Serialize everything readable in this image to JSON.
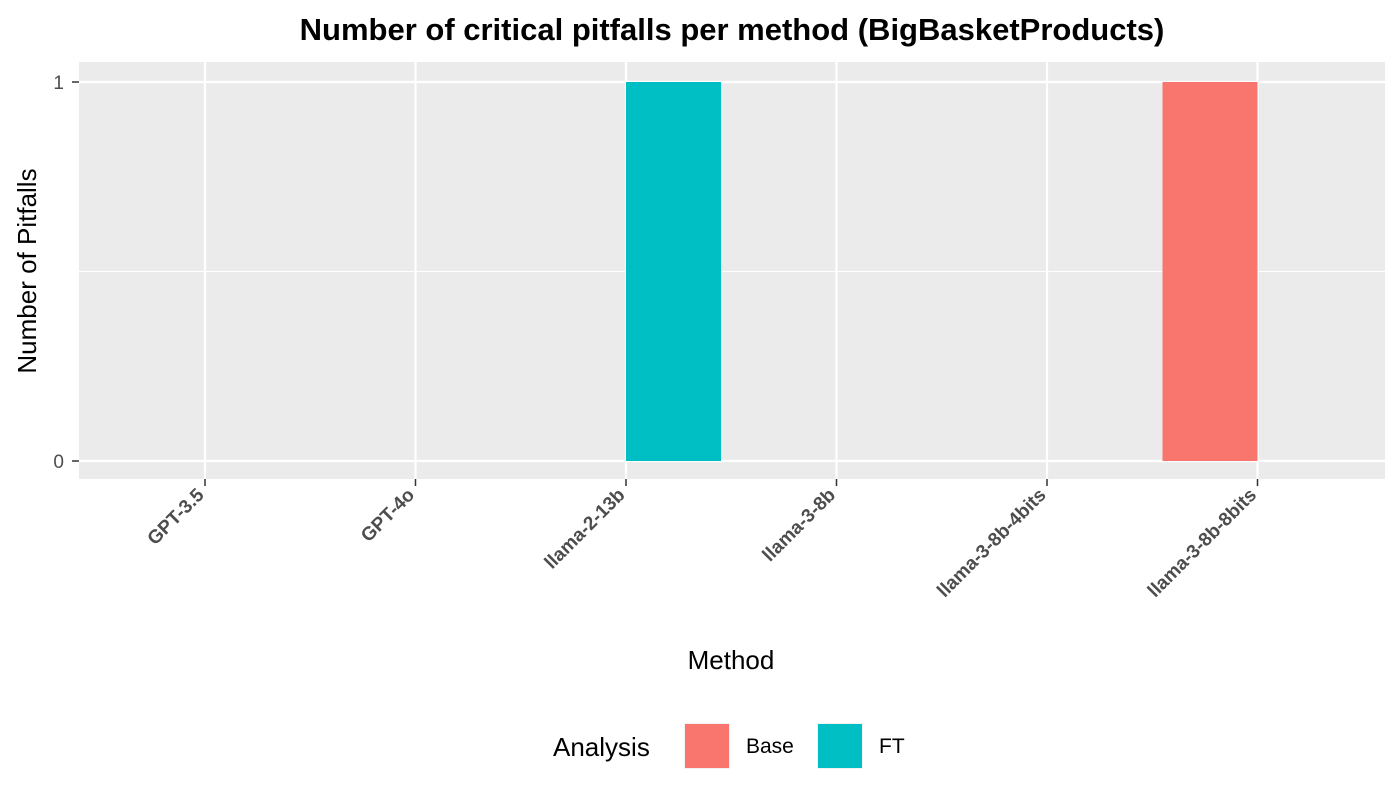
{
  "chart_data": {
    "type": "bar",
    "title": "Number of critical pitfalls per method (BigBasketProducts)",
    "xlabel": "Method",
    "ylabel": "Number of Pitfalls",
    "categories": [
      "GPT-3.5",
      "GPT-4o",
      "llama-2-13b",
      "llama-3-8b",
      "llama-3-8b-4bits",
      "llama-3-8b-8bits"
    ],
    "series": [
      {
        "name": "Base",
        "color": "#F8766D",
        "values": [
          0,
          0,
          0,
          0,
          0,
          1
        ]
      },
      {
        "name": "FT",
        "color": "#00BFC4",
        "values": [
          0,
          0,
          1,
          0,
          0,
          0
        ]
      }
    ],
    "ylim": [
      0,
      1
    ],
    "y_ticks": [
      "0",
      "1"
    ],
    "grid": true,
    "panel_background": "#EBEBEB",
    "legend": {
      "title": "Analysis",
      "position": "bottom",
      "entries": [
        "Base",
        "FT"
      ]
    }
  }
}
